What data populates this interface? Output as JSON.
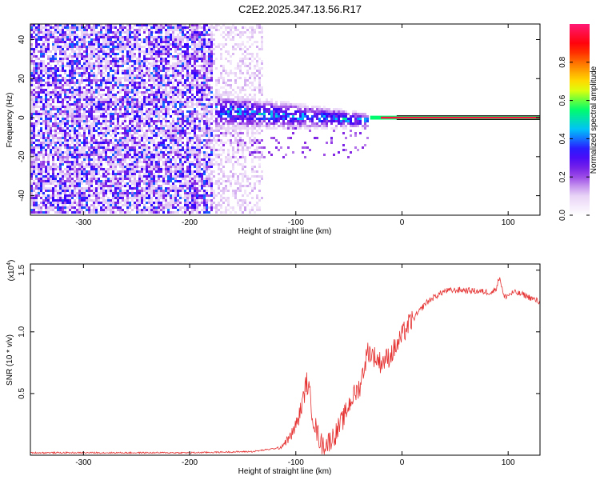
{
  "page": {
    "title": "C2E2.2025.347.13.56.R17"
  },
  "colors": {
    "background": "#ffffff",
    "axis": "#000000",
    "snr_line": "#e53030",
    "spectrum_line": "#111111"
  },
  "chart_data": [
    {
      "type": "heatmap",
      "name": "spectrogram",
      "title": "C2E2.2025.347.13.56.R17",
      "xlabel": "Height of straight line (km)",
      "ylabel": "Frequency (Hz)",
      "xlim": [
        -350,
        130
      ],
      "ylim": [
        -50,
        48
      ],
      "xticks": [
        -300,
        -200,
        -100,
        0,
        100
      ],
      "yticks": [
        -40,
        -20,
        0,
        20,
        40
      ],
      "colorbar": {
        "label": "Normalized spectral amplitude",
        "ticks": [
          0.0,
          0.2,
          0.4,
          0.6,
          0.8
        ],
        "range": [
          0,
          1
        ],
        "colors": [
          "#ffffff",
          "#e6cff5",
          "#8a2be2",
          "#3000ff",
          "#00bfff",
          "#00ff66",
          "#ffff00",
          "#ff8800",
          "#ff0000",
          "#ff1a75"
        ]
      },
      "regions": [
        {
          "label": "dense noise",
          "x_range": [
            -350,
            -178
          ],
          "y_range": [
            -50,
            48
          ],
          "amplitude": 0.35
        },
        {
          "label": "sparse noise",
          "x_range": [
            -178,
            -130
          ],
          "y_range": [
            -50,
            48
          ],
          "amplitude": 0.12
        },
        {
          "label": "signal onset",
          "x_range": [
            -175,
            -50
          ],
          "center_freq": 3,
          "spread_hz": 10,
          "amplitude": 0.35
        },
        {
          "label": "tone",
          "x_range": [
            -30,
            130
          ],
          "center_freq": 0,
          "spread_hz": 2,
          "amplitude": 0.95
        }
      ]
    },
    {
      "type": "line",
      "name": "snr",
      "xlabel": "Height of straight line (km)",
      "ylabel": "SNR (10 * v/v)",
      "ymultiplier": "(x10",
      "yexponent": "4",
      "xlim": [
        -350,
        130
      ],
      "ylim": [
        0,
        1.55
      ],
      "xticks": [
        -300,
        -200,
        -100,
        0,
        100
      ],
      "yticks": [
        0.5,
        1.0,
        1.5
      ],
      "ytick_labels": [
        "0.5",
        "1.0",
        "1.5"
      ],
      "series": [
        {
          "name": "SNR",
          "x": [
            -350,
            -200,
            -140,
            -115,
            -105,
            -98,
            -93,
            -90,
            -87,
            -84,
            -80,
            -75,
            -70,
            -62,
            -55,
            -48,
            -40,
            -32,
            -26,
            -20,
            -12,
            -4,
            2,
            8,
            15,
            22,
            30,
            40,
            55,
            70,
            85,
            89,
            92,
            96,
            105,
            115,
            125,
            130
          ],
          "values": [
            0.02,
            0.02,
            0.03,
            0.06,
            0.15,
            0.28,
            0.45,
            0.6,
            0.5,
            0.32,
            0.18,
            0.08,
            0.1,
            0.18,
            0.3,
            0.45,
            0.55,
            0.85,
            0.8,
            0.75,
            0.8,
            0.9,
            1.0,
            1.08,
            1.15,
            1.23,
            1.28,
            1.33,
            1.34,
            1.33,
            1.32,
            1.36,
            1.45,
            1.28,
            1.32,
            1.3,
            1.26,
            1.24
          ]
        }
      ]
    }
  ]
}
